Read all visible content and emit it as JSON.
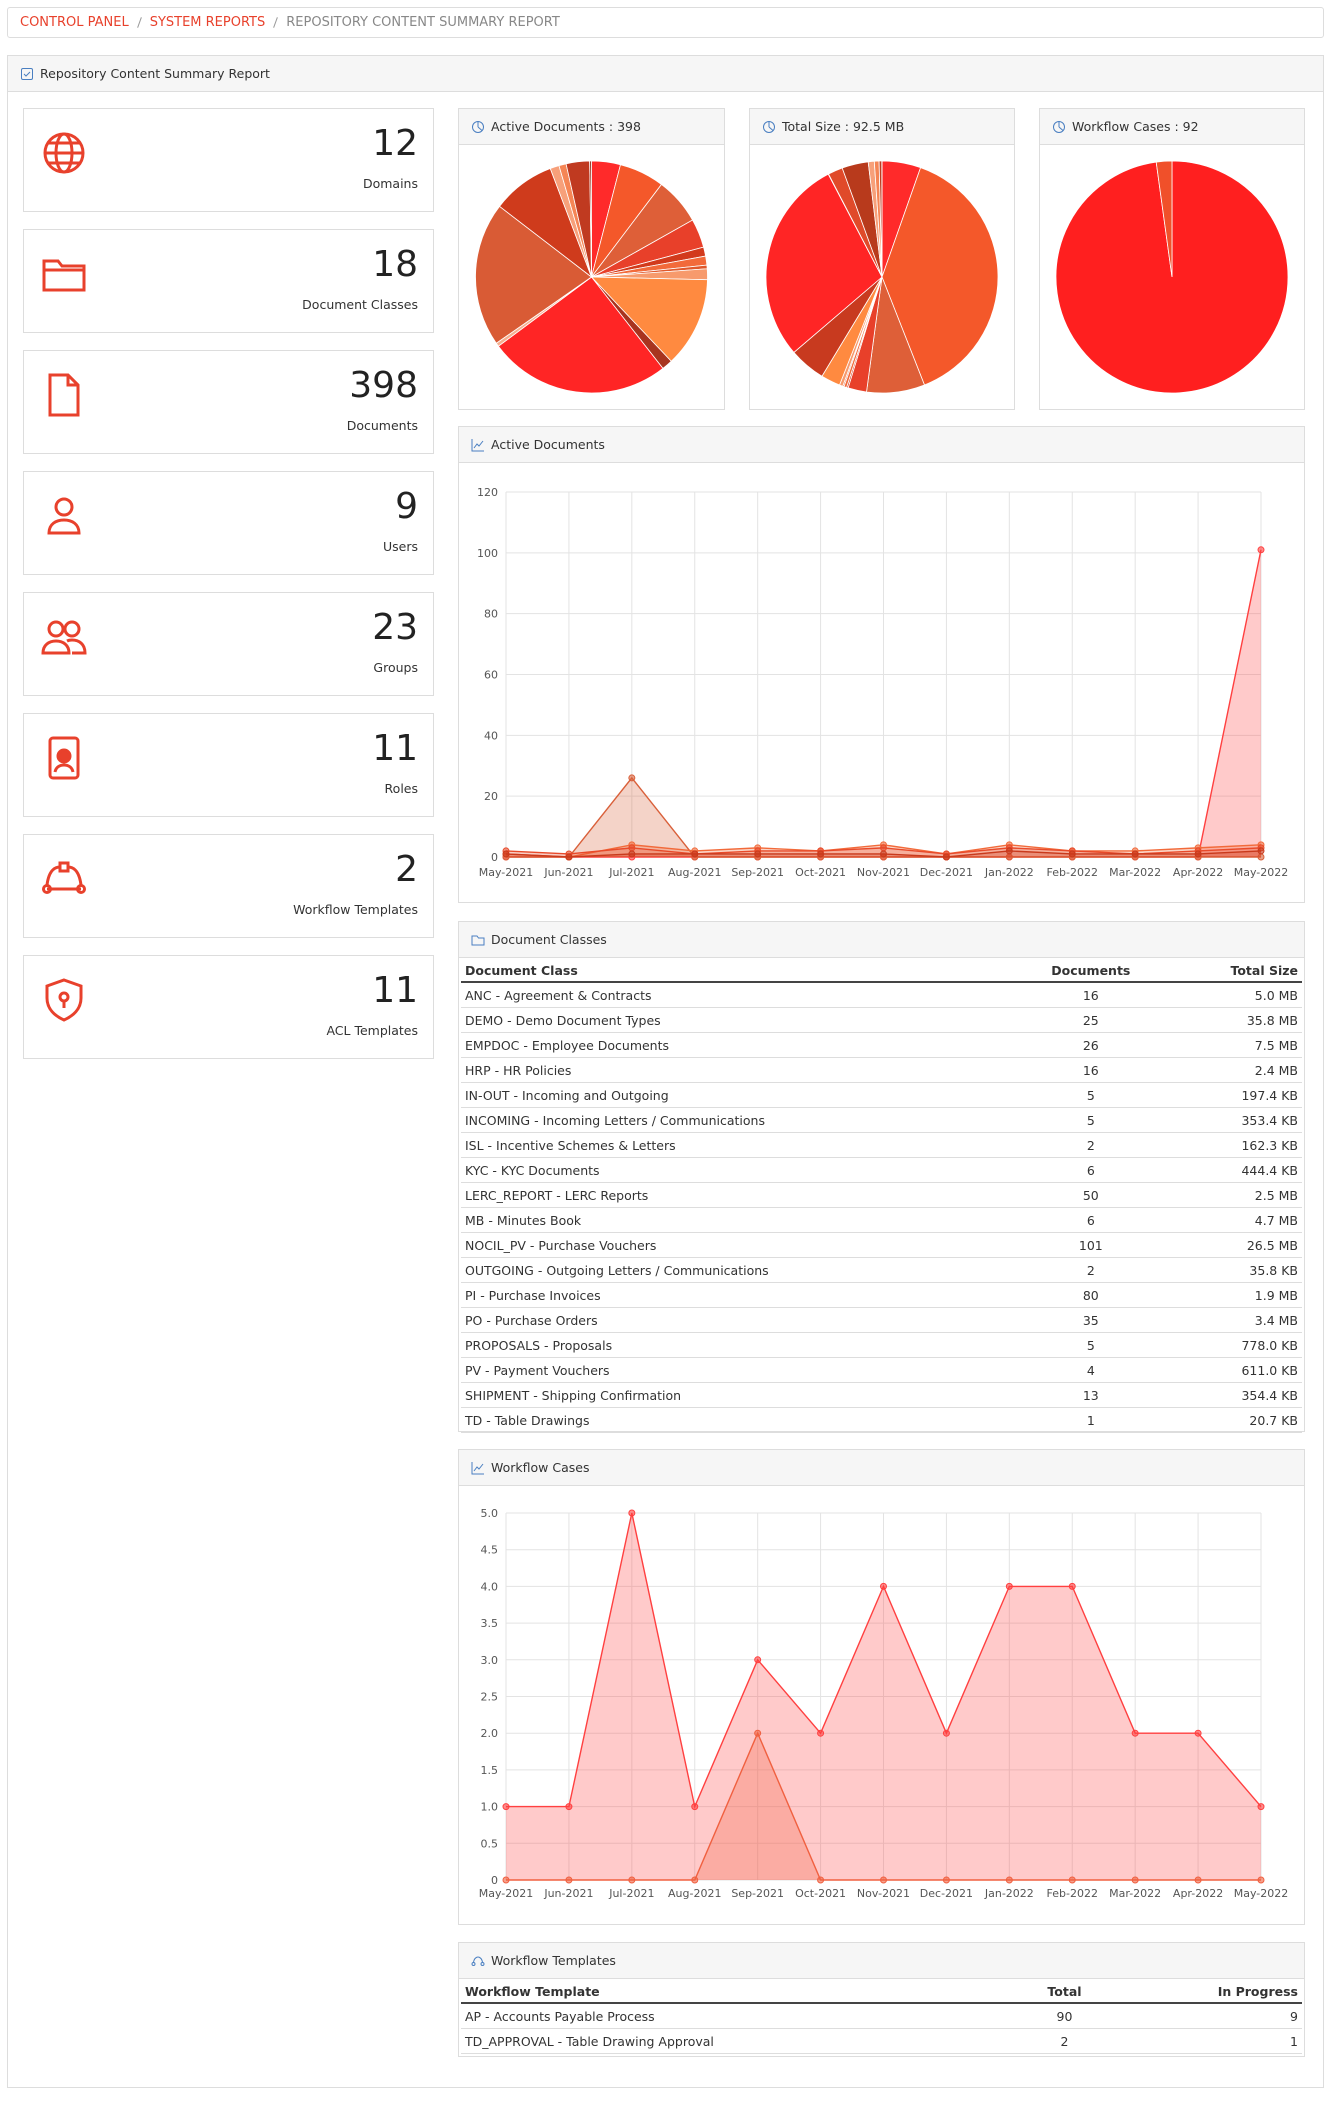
{
  "breadcrumb": [
    "CONTROL PANEL",
    "SYSTEM REPORTS",
    "REPOSITORY CONTENT SUMMARY REPORT"
  ],
  "panel_title": "Repository Content Summary Report",
  "stats": [
    {
      "value": 12,
      "label": "Domains"
    },
    {
      "value": 18,
      "label": "Document Classes"
    },
    {
      "value": 398,
      "label": "Documents"
    },
    {
      "value": 9,
      "label": "Users"
    },
    {
      "value": 23,
      "label": "Groups"
    },
    {
      "value": 11,
      "label": "Roles"
    },
    {
      "value": 2,
      "label": "Workflow Templates"
    },
    {
      "value": 11,
      "label": "ACL Templates"
    }
  ],
  "chart_data": [
    {
      "type": "pie",
      "title": "Active Documents : 398",
      "values": [
        16,
        25,
        26,
        16,
        5,
        5,
        2,
        6,
        50,
        6,
        101,
        2,
        80,
        35,
        5,
        4,
        13,
        1
      ],
      "colors": [
        "#ff2a2a",
        "#f4582a",
        "#de5f38",
        "#e8402a",
        "#d23a1c",
        "#f26a3a",
        "#e0582b",
        "#f79a6c",
        "#ff8a40",
        "#a8341f",
        "#ff2525",
        "#f5b090",
        "#d95b35",
        "#cf3b1c",
        "#f7a07a",
        "#f58555",
        "#c03a20",
        "#8e2a18"
      ]
    },
    {
      "type": "pie",
      "title": "Total Size : 92.5 MB",
      "values": [
        5.0,
        35.8,
        7.5,
        2.4,
        0.2,
        0.35,
        0.16,
        0.44,
        2.5,
        4.7,
        26.5,
        0.04,
        1.9,
        3.4,
        0.78,
        0.61,
        0.35,
        0.02
      ],
      "colors": [
        "#ff2a2a",
        "#f4582a",
        "#de5f38",
        "#e8402a",
        "#d23a1c",
        "#f26a3a",
        "#e0582b",
        "#f79a6c",
        "#ff8a40",
        "#c83a1f",
        "#ff2525",
        "#f5b090",
        "#e04a2a",
        "#b83a1c",
        "#f7a07a",
        "#f58555",
        "#c03a20",
        "#8e2a18"
      ]
    },
    {
      "type": "pie",
      "title": "Workflow Cases : 92",
      "values": [
        90,
        2
      ],
      "colors": [
        "#ff1f1f",
        "#f0502a"
      ]
    },
    {
      "type": "line",
      "title": "Active Documents",
      "categories": [
        "May-2021",
        "Jun-2021",
        "Jul-2021",
        "Aug-2021",
        "Sep-2021",
        "Oct-2021",
        "Nov-2021",
        "Dec-2021",
        "Jan-2022",
        "Feb-2022",
        "Mar-2022",
        "Apr-2022",
        "May-2022"
      ],
      "series": [
        {
          "color": "#ff4040",
          "values": [
            0,
            0,
            0,
            0,
            0,
            0,
            0,
            0,
            0,
            0,
            0,
            0,
            101
          ]
        },
        {
          "color": "#d9603a",
          "values": [
            0,
            0,
            26,
            0,
            0,
            0,
            0,
            0,
            0,
            0,
            0,
            0,
            0
          ]
        },
        {
          "color": "#f26a3a",
          "values": [
            1,
            0,
            4,
            2,
            3,
            2,
            4,
            1,
            4,
            2,
            2,
            3,
            4
          ]
        },
        {
          "color": "#e84a2a",
          "values": [
            2,
            1,
            3,
            1,
            2,
            2,
            3,
            1,
            3,
            2,
            1,
            2,
            3
          ]
        },
        {
          "color": "#c93a1c",
          "values": [
            1,
            0,
            1,
            1,
            1,
            1,
            1,
            0,
            2,
            1,
            1,
            1,
            2
          ]
        }
      ],
      "ylim": [
        0,
        120
      ],
      "yticks": [
        0,
        20,
        40,
        60,
        80,
        100,
        120
      ],
      "grid": true,
      "area": true
    },
    {
      "type": "line",
      "title": "Workflow Cases",
      "categories": [
        "May-2021",
        "Jun-2021",
        "Jul-2021",
        "Aug-2021",
        "Sep-2021",
        "Oct-2021",
        "Nov-2021",
        "Dec-2021",
        "Jan-2022",
        "Feb-2022",
        "Mar-2022",
        "Apr-2022",
        "May-2022"
      ],
      "series": [
        {
          "color": "#ff4040",
          "values": [
            1,
            1,
            5,
            1,
            3,
            2,
            4,
            2,
            4,
            4,
            2,
            2,
            1
          ]
        },
        {
          "color": "#f06040",
          "values": [
            0,
            0,
            0,
            0,
            2,
            0,
            0,
            0,
            0,
            0,
            0,
            0,
            0
          ]
        }
      ],
      "ylim": [
        0,
        5
      ],
      "yticks": [
        0,
        0.5,
        {
          "value": 1,
          "label": "1.0"
        },
        1.5,
        {
          "value": 2,
          "label": "2.0"
        },
        2.5,
        {
          "value": 3,
          "label": "3.0"
        },
        3.5,
        {
          "value": 4,
          "label": "4.0"
        },
        4.5,
        {
          "value": 5,
          "label": "5.0"
        }
      ],
      "grid": true,
      "area": true
    }
  ],
  "document_classes": {
    "title": "Document Classes",
    "columns": [
      "Document Class",
      "Documents",
      "Total Size"
    ],
    "rows": [
      [
        "ANC - Agreement & Contracts",
        16,
        "5.0 MB"
      ],
      [
        "DEMO - Demo Document Types",
        25,
        "35.8 MB"
      ],
      [
        "EMPDOC - Employee Documents",
        26,
        "7.5 MB"
      ],
      [
        "HRP - HR Policies",
        16,
        "2.4 MB"
      ],
      [
        "IN-OUT - Incoming and Outgoing",
        5,
        "197.4 KB"
      ],
      [
        "INCOMING - Incoming Letters / Communications",
        5,
        "353.4 KB"
      ],
      [
        "ISL - Incentive Schemes & Letters",
        2,
        "162.3 KB"
      ],
      [
        "KYC - KYC Documents",
        6,
        "444.4 KB"
      ],
      [
        "LERC_REPORT - LERC Reports",
        50,
        "2.5 MB"
      ],
      [
        "MB - Minutes Book",
        6,
        "4.7 MB"
      ],
      [
        "NOCIL_PV - Purchase Vouchers",
        101,
        "26.5 MB"
      ],
      [
        "OUTGOING - Outgoing Letters / Communications",
        2,
        "35.8 KB"
      ],
      [
        "PI - Purchase Invoices",
        80,
        "1.9 MB"
      ],
      [
        "PO - Purchase Orders",
        35,
        "3.4 MB"
      ],
      [
        "PROPOSALS - Proposals",
        5,
        "778.0 KB"
      ],
      [
        "PV - Payment Vouchers",
        4,
        "611.0 KB"
      ],
      [
        "SHIPMENT - Shipping Confirmation",
        13,
        "354.4 KB"
      ],
      [
        "TD - Table Drawings",
        1,
        "20.7 KB"
      ]
    ]
  },
  "workflow_templates": {
    "title": "Workflow Templates",
    "columns": [
      "Workflow Template",
      "Total",
      "In Progress"
    ],
    "rows": [
      [
        "AP - Accounts Payable Process",
        90,
        9
      ],
      [
        "TD_APPROVAL - Table Drawing Approval",
        2,
        1
      ]
    ]
  }
}
